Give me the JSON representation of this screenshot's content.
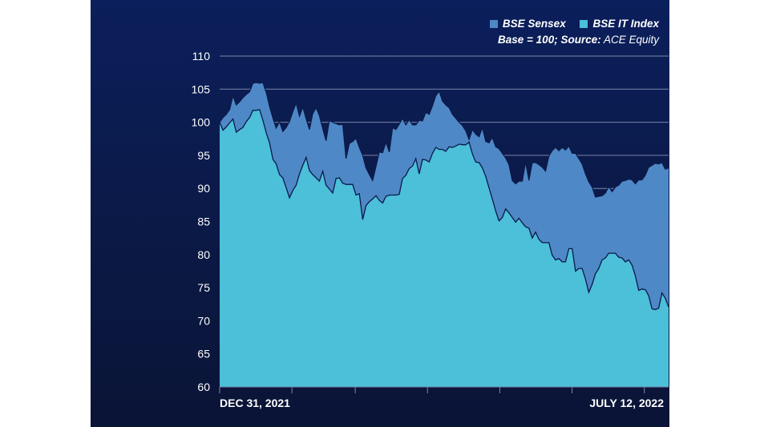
{
  "colors": {
    "background": "#0b1a49",
    "sensex": "#4f88c6",
    "it_index": "#4cbfd9",
    "line": "#0b1a49",
    "grid": "#7b86aa"
  },
  "legend": {
    "sensex_label": "BSE Sensex",
    "it_label": "BSE IT Index",
    "base_bold": "Base = 100; Source:",
    "source": "ACE Equity"
  },
  "chart_data": {
    "type": "area",
    "title": "",
    "xlabel": "",
    "ylabel": "",
    "x_start_label": "DEC 31, 2021",
    "x_end_label": "JULY 12, 2022",
    "ylim": [
      60,
      110
    ],
    "yticks": [
      "110",
      "105",
      "100",
      "95",
      "90",
      "85",
      "80",
      "75",
      "70",
      "65",
      "60"
    ],
    "n_points": 136,
    "series": [
      {
        "name": "BSE Sensex",
        "values": [
          100,
          100.7,
          101.2,
          101.9,
          104,
          102.6,
          103.1,
          103.7,
          104.2,
          104.6,
          105.9,
          106,
          105.9,
          106,
          104.5,
          102.4,
          100.6,
          99.1,
          100.1,
          98.6,
          99.2,
          100.1,
          101.6,
          102.9,
          100.9,
          102.3,
          100.5,
          98.9,
          101.3,
          102.2,
          101,
          99,
          97.2,
          100.3,
          100,
          99.8,
          99.6,
          99.7,
          94.5,
          96.8,
          97.1,
          97.6,
          96.2,
          95,
          93.1,
          92.1,
          91.2,
          93.3,
          95.5,
          95.4,
          97,
          95.5,
          99.2,
          98.9,
          99.7,
          100.6,
          99.6,
          100.4,
          99.6,
          99.6,
          100.3,
          100.2,
          101.5,
          101.2,
          102.5,
          104,
          104.7,
          103.2,
          102.6,
          102.2,
          101.2,
          100.6,
          100,
          99.5,
          98.7,
          97.4,
          98.9,
          98.2,
          97.8,
          99.2,
          97.1,
          96.9,
          97.7,
          96.3,
          96,
          95.3,
          94.6,
          93.6,
          91.2,
          90.7,
          91.1,
          91.1,
          94,
          91.2,
          93.9,
          93.9,
          93.6,
          93.2,
          92.6,
          94.9,
          95.7,
          96.2,
          95.7,
          96.2,
          95.8,
          96.4,
          95.3,
          95.3,
          94.5,
          93.7,
          92.2,
          91,
          90.2,
          88.7,
          88.8,
          88.9,
          89.3,
          90.3,
          89.5,
          90.2,
          90.5,
          91.1,
          91.2,
          91.4,
          91.3,
          90.7,
          91.3,
          91.3,
          92,
          93.2,
          93.5,
          93.8,
          93.7,
          93.9,
          92.9,
          93.1
        ]
      },
      {
        "name": "BSE IT Index",
        "values": [
          100,
          98.8,
          99.3,
          99.9,
          100.5,
          98.5,
          98.9,
          99.2,
          100.1,
          100.7,
          101.8,
          101.8,
          101.9,
          100.3,
          98.4,
          96.9,
          94.4,
          93.7,
          92.1,
          91.6,
          90.1,
          88.6,
          89.7,
          90.5,
          92.2,
          93.5,
          94.7,
          92.7,
          92.1,
          91.6,
          91.1,
          92.6,
          90.5,
          89.9,
          89.3,
          91.5,
          91.6,
          90.8,
          90.6,
          90.6,
          90.6,
          89,
          89.2,
          85.3,
          87.4,
          88,
          88.4,
          88.9,
          88.2,
          87.8,
          88.8,
          89,
          89,
          89,
          89.1,
          91.5,
          92,
          93,
          93.4,
          94.5,
          92.2,
          94.4,
          94.3,
          94,
          95.3,
          96.2,
          95.9,
          95.9,
          95.6,
          96.3,
          96.2,
          96.4,
          96.7,
          96.6,
          96.6,
          97,
          95.2,
          94,
          93.9,
          93.1,
          91.8,
          90.1,
          88.4,
          86.6,
          85.1,
          85.6,
          86.9,
          86.3,
          85.6,
          84.9,
          85.5,
          84.8,
          84.2,
          84,
          82.5,
          83.4,
          82.3,
          81.8,
          81.8,
          81.8,
          79.9,
          79.2,
          79.4,
          78.9,
          78.9,
          80.9,
          80.9,
          77.5,
          77.9,
          77.9,
          76.3,
          74.3,
          75.5,
          77.1,
          77.9,
          79.2,
          79.5,
          80.2,
          80.2,
          80.2,
          79.6,
          79.5,
          78.9,
          79.2,
          78.4,
          76.8,
          74.6,
          74.8,
          74.7,
          73.8,
          71.8,
          71.7,
          71.9,
          74.2,
          73.4,
          72.1
        ]
      }
    ]
  }
}
